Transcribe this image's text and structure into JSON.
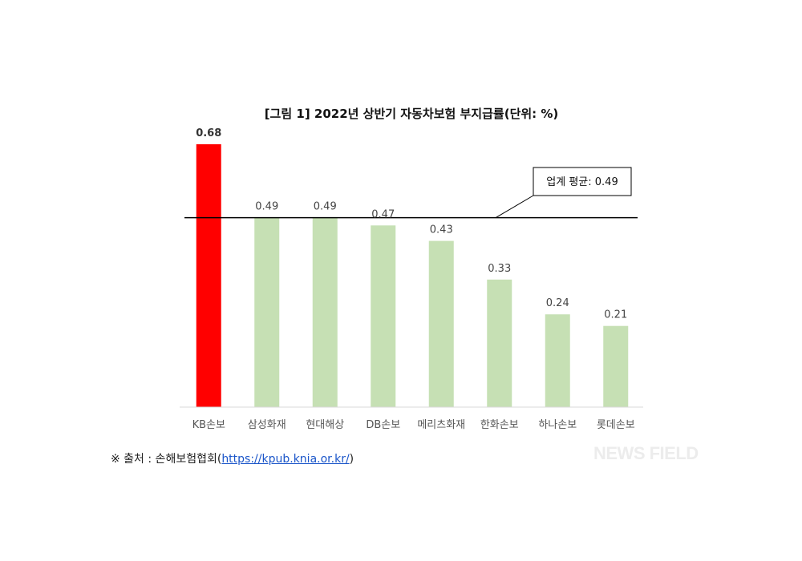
{
  "chart_data": {
    "type": "bar",
    "title": "[그림 1] 2022년 상반기 자동차보험 부지급률(단위: %)",
    "categories": [
      "KB손보",
      "삼성화재",
      "현대해상",
      "DB손보",
      "메리츠화재",
      "한화손보",
      "하나손보",
      "롯데손보"
    ],
    "values": [
      0.68,
      0.49,
      0.49,
      0.47,
      0.43,
      0.33,
      0.24,
      0.21
    ],
    "value_labels": [
      "0.68",
      "0.49",
      "0.49",
      "0.47",
      "0.43",
      "0.33",
      "0.24",
      "0.21"
    ],
    "highlight_index": 0,
    "average": 0.49,
    "average_label": "업계 평균: 0.49",
    "ylim": [
      0,
      0.68
    ],
    "grid": false,
    "colors": {
      "highlight": "#ff0000",
      "bar": "#c6e0b4",
      "line": "#000000",
      "axis": "#d9d9d9"
    }
  },
  "source": {
    "prefix": "※ 출처 : 손해보험협회(",
    "link": "https://kpub.knia.or.kr/",
    "suffix": ")"
  },
  "watermark": "NEWS FIELD"
}
